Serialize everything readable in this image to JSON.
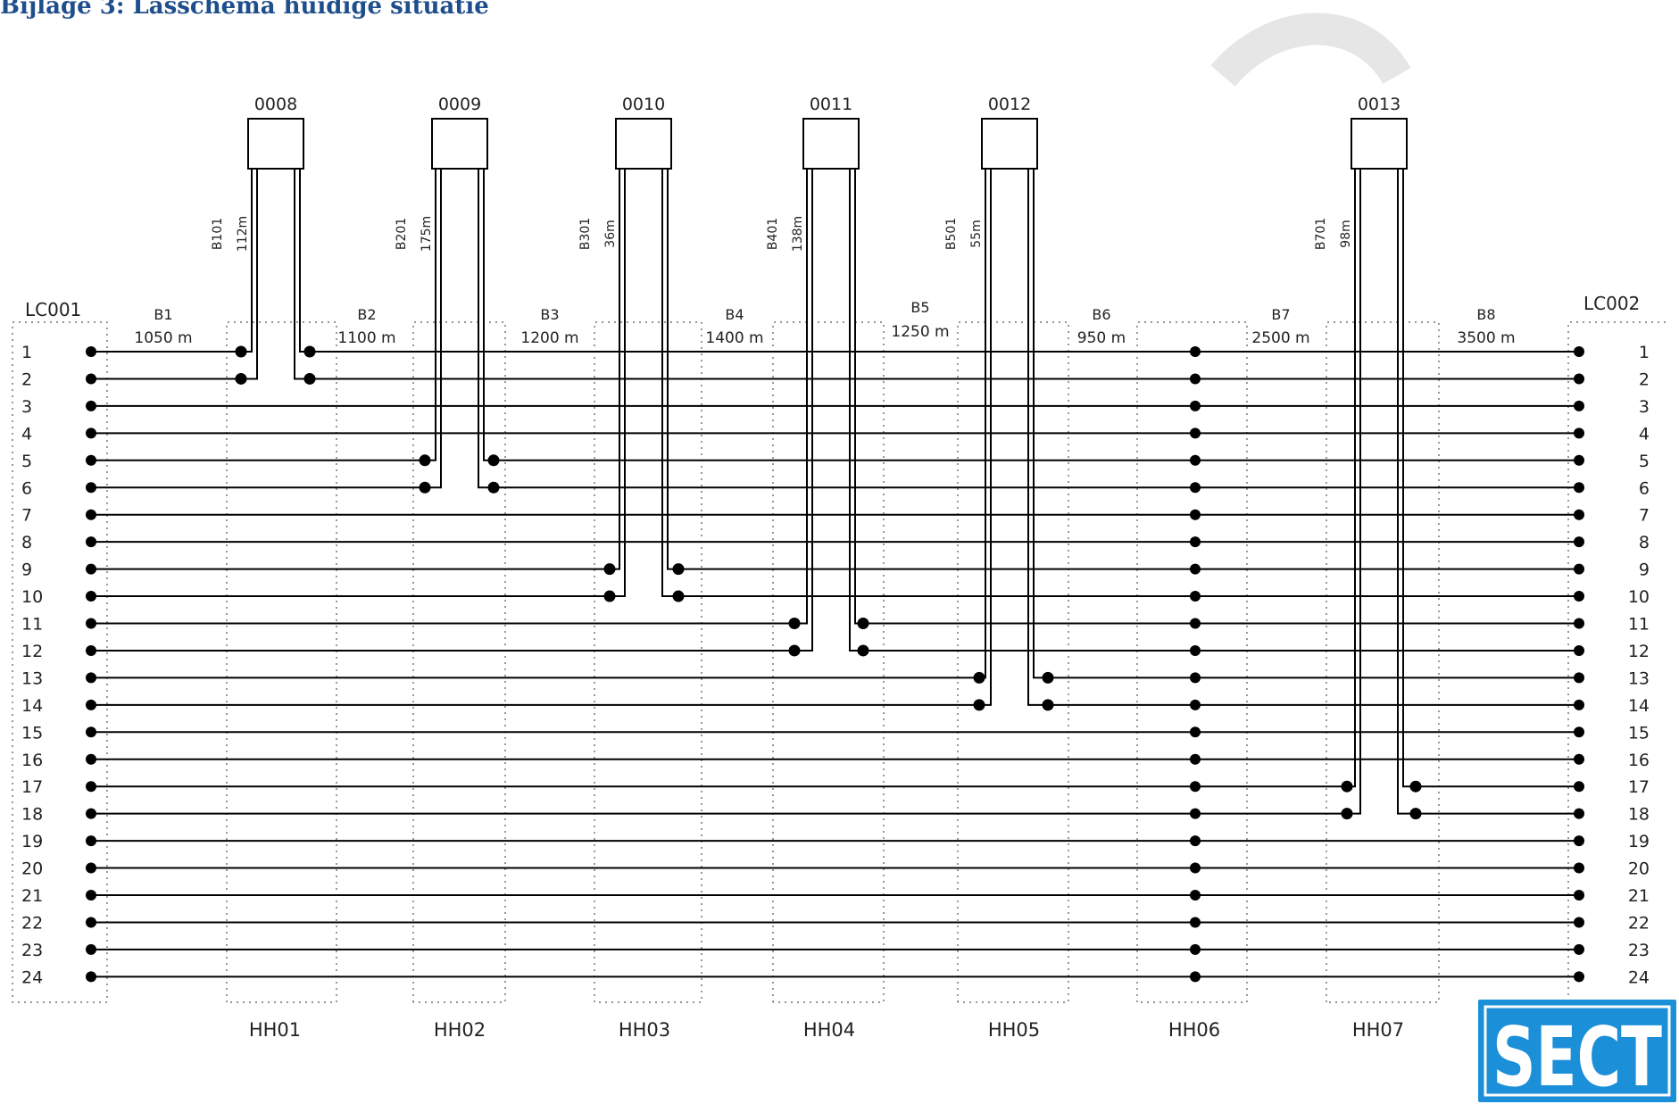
{
  "document": {
    "heading": "Bijlage 3: Lasschema huidige situatie"
  },
  "diagram": {
    "start_cabinet": "LC001",
    "end_cabinet": "LC002",
    "fiber_count": 24,
    "fiber_numbers": [
      "1",
      "2",
      "3",
      "4",
      "5",
      "6",
      "7",
      "8",
      "9",
      "10",
      "11",
      "12",
      "13",
      "14",
      "15",
      "16",
      "17",
      "18",
      "19",
      "20",
      "21",
      "22",
      "23",
      "24"
    ],
    "segments": [
      {
        "name": "B1",
        "length": "1050 m"
      },
      {
        "name": "B2",
        "length": "1100 m"
      },
      {
        "name": "B3",
        "length": "1200 m"
      },
      {
        "name": "B4",
        "length": "1400 m"
      },
      {
        "name": "B5",
        "length": "1250 m"
      },
      {
        "name": "B6",
        "length": "950 m"
      },
      {
        "name": "B7",
        "length": "2500 m"
      },
      {
        "name": "B8",
        "length": "3500 m"
      }
    ],
    "handholes": [
      "HH01",
      "HH02",
      "HH03",
      "HH04",
      "HH05",
      "HH06",
      "HH07"
    ],
    "terminals": [
      {
        "id": "0008",
        "cable": "B101",
        "length": "112m",
        "handhole": "HH01",
        "fibers": [
          1,
          2
        ]
      },
      {
        "id": "0009",
        "cable": "B201",
        "length": "175m",
        "handhole": "HH02",
        "fibers": [
          5,
          6
        ]
      },
      {
        "id": "0010",
        "cable": "B301",
        "length": "36m",
        "handhole": "HH03",
        "fibers": [
          9,
          10
        ]
      },
      {
        "id": "0011",
        "cable": "B401",
        "length": "138m",
        "handhole": "HH04",
        "fibers": [
          11,
          12
        ]
      },
      {
        "id": "0012",
        "cable": "B501",
        "length": "55m",
        "handhole": "HH05",
        "fibers": [
          13,
          14
        ]
      },
      {
        "id": "0013",
        "cable": "B701",
        "length": "98m",
        "handhole": "HH07",
        "fibers": [
          17,
          18
        ]
      }
    ],
    "through_splice_handhole": "HH06"
  },
  "logo": {
    "text": "SECT",
    "color": "#1b8fd8"
  },
  "watermark": {
    "color": "#e6e6e6"
  }
}
